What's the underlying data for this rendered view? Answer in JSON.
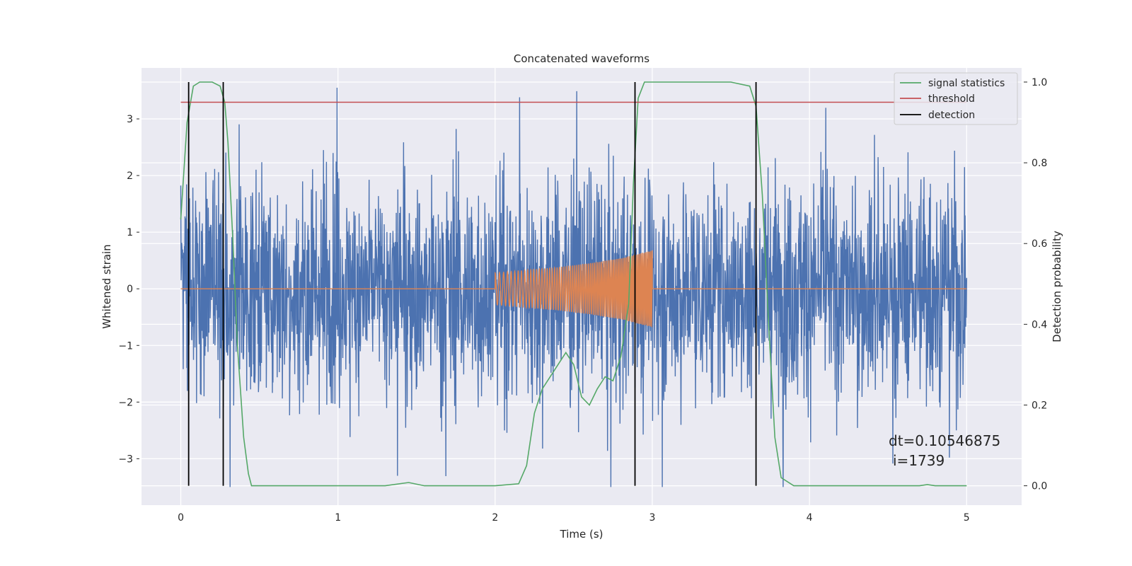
{
  "chart_data": {
    "type": "line",
    "title": "Concatenated waveforms",
    "xlabel": "Time (s)",
    "ylabel": "Whitened strain",
    "y2label": "Detection probability",
    "xlim": [
      -0.25,
      5.35
    ],
    "ylim": [
      -3.82,
      3.9
    ],
    "y2lim": [
      -0.048,
      1.035
    ],
    "x_ticks": [
      0,
      1,
      2,
      3,
      4,
      5
    ],
    "y_ticks": [
      -3,
      -2,
      -1,
      0,
      1,
      2,
      3
    ],
    "y2_ticks": [
      0.0,
      0.2,
      0.4,
      0.6,
      0.8,
      1.0
    ],
    "x_tick_labels": [
      "0",
      "1",
      "2",
      "3",
      "4",
      "5"
    ],
    "y_tick_labels": [
      "−3",
      "−2",
      "−1",
      "0",
      "1",
      "2",
      "3"
    ],
    "y2_tick_labels": [
      "0.0",
      "0.2",
      "0.4",
      "0.6",
      "0.8",
      "1.0"
    ],
    "grid": true,
    "legend_position": "top-right",
    "colors": {
      "strain": "#4c72b0",
      "waveform": "#dd8452",
      "signal_statistics": "#55a868",
      "threshold": "#c44e52",
      "detection": "#000000",
      "background": "#eaeaf2",
      "grid": "#ffffff"
    },
    "series": [
      {
        "name": "",
        "role": "whitened strain (noise)",
        "x_range": [
          0,
          5
        ],
        "approx_range": [
          -3.5,
          3.55
        ]
      },
      {
        "name": "",
        "role": "injected chirp waveform",
        "x": [
          2.0,
          2.2,
          2.4,
          2.6,
          2.8,
          3.0
        ],
        "amplitude": [
          0.28,
          0.33,
          0.38,
          0.45,
          0.54,
          0.68
        ]
      },
      {
        "name": "signal statistics",
        "axis": "right",
        "x": [
          0,
          0.04,
          0.08,
          0.12,
          0.2,
          0.25,
          0.28,
          0.3,
          0.33,
          0.36,
          0.4,
          0.43,
          0.45,
          0.5,
          1.3,
          1.45,
          1.55,
          2.0,
          2.15,
          2.2,
          2.25,
          2.3,
          2.4,
          2.45,
          2.5,
          2.55,
          2.6,
          2.65,
          2.7,
          2.75,
          2.8,
          2.85,
          2.88,
          2.91,
          2.95,
          3.0,
          3.5,
          3.62,
          3.66,
          3.7,
          3.74,
          3.78,
          3.82,
          3.9,
          4.7,
          4.75,
          4.8,
          5.0
        ],
        "values": [
          0.66,
          0.9,
          0.99,
          1.0,
          1.0,
          0.99,
          0.95,
          0.85,
          0.62,
          0.35,
          0.12,
          0.03,
          0.0,
          0.0,
          0.0,
          0.008,
          0.0,
          0.0,
          0.005,
          0.05,
          0.18,
          0.24,
          0.3,
          0.33,
          0.3,
          0.22,
          0.2,
          0.24,
          0.27,
          0.26,
          0.32,
          0.45,
          0.75,
          0.96,
          1.0,
          1.0,
          1.0,
          0.99,
          0.94,
          0.72,
          0.4,
          0.12,
          0.02,
          0.0,
          0.0,
          0.003,
          0.0,
          0.0
        ]
      },
      {
        "name": "threshold",
        "axis": "right",
        "x": [
          0,
          5
        ],
        "values": [
          0.95,
          0.95
        ]
      },
      {
        "name": "detection",
        "x": [
          0.05,
          0.27,
          2.89,
          3.66
        ],
        "type": "vlines"
      }
    ],
    "annotation_line1": "dt=0.10546875",
    "annotation_line2": "i=1739"
  }
}
